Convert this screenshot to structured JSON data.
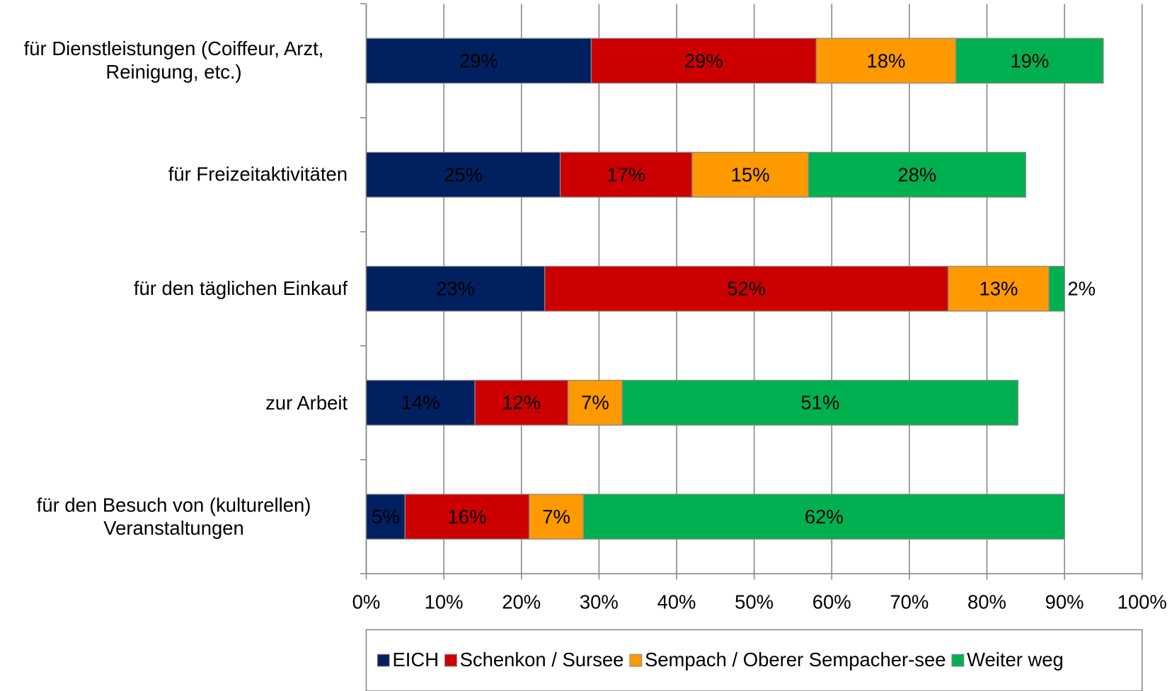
{
  "chart_data": {
    "type": "stacked_barh",
    "categories": [
      "für Dienstleistungen (Coiffeur, Arzt, Reinigung, etc.)",
      "für Freizeitaktivitäten",
      "für den täglichen Einkauf",
      "zur Arbeit",
      "für den Besuch von (kulturellen) Veranstaltungen"
    ],
    "series": [
      {
        "name": "EICH",
        "color": "#002060",
        "values": [
          29,
          25,
          23,
          14,
          5
        ],
        "value_labels": [
          "29%",
          "25%",
          "23%",
          "14%",
          "5%"
        ]
      },
      {
        "name": "Schenkon / Sursee",
        "color": "#cc0000",
        "values": [
          29,
          17,
          52,
          12,
          16
        ],
        "value_labels": [
          "29%",
          "17%",
          "52%",
          "12%",
          "16%"
        ]
      },
      {
        "name": "Sempach / Oberer Sempacher-see",
        "color": "#ff9900",
        "values": [
          18,
          15,
          13,
          7,
          7
        ],
        "value_labels": [
          "18%",
          "15%",
          "13%",
          "7%",
          "7%"
        ]
      },
      {
        "name": "Weiter weg",
        "color": "#00b050",
        "values": [
          19,
          28,
          2,
          51,
          62
        ],
        "value_labels": [
          "19%",
          "28%",
          "2%",
          "51%",
          "62%"
        ]
      }
    ],
    "xlim": [
      0,
      100
    ],
    "xticks": [
      {
        "value": 0,
        "label": "0%"
      },
      {
        "value": 10,
        "label": "10%"
      },
      {
        "value": 20,
        "label": "20%"
      },
      {
        "value": 30,
        "label": "30%"
      },
      {
        "value": 40,
        "label": "40%"
      },
      {
        "value": 50,
        "label": "50%"
      },
      {
        "value": 60,
        "label": "60%"
      },
      {
        "value": 70,
        "label": "70%"
      },
      {
        "value": 80,
        "label": "80%"
      },
      {
        "value": 90,
        "label": "90%"
      },
      {
        "value": 100,
        "label": "100%"
      }
    ],
    "grid": true,
    "legend": "bottom"
  }
}
